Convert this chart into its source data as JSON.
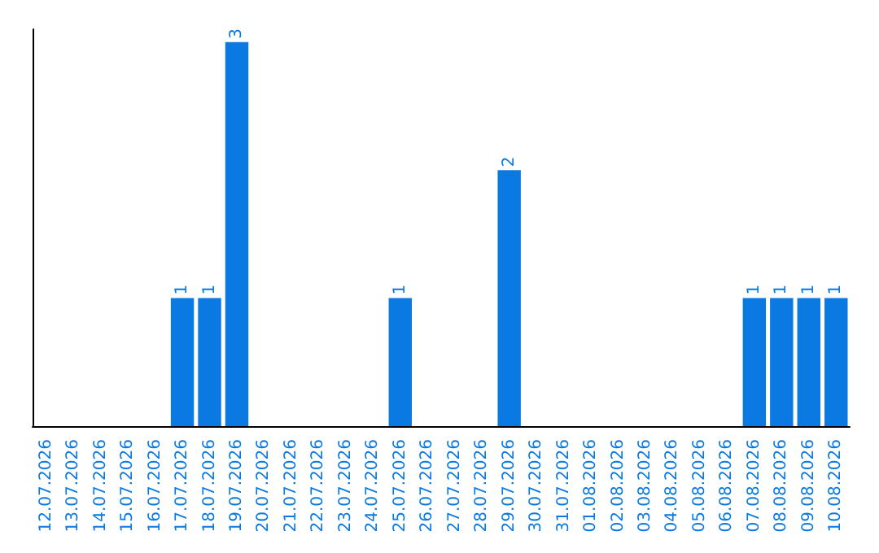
{
  "chart_data": {
    "type": "bar",
    "categories": [
      "12.07.2026",
      "13.07.2026",
      "14.07.2026",
      "15.07.2026",
      "16.07.2026",
      "17.07.2026",
      "18.07.2026",
      "19.07.2026",
      "20.07.2026",
      "21.07.2026",
      "22.07.2026",
      "23.07.2026",
      "24.07.2026",
      "25.07.2026",
      "26.07.2026",
      "27.07.2026",
      "28.07.2026",
      "29.07.2026",
      "30.07.2026",
      "31.07.2026",
      "01.08.2026",
      "02.08.2026",
      "03.08.2026",
      "04.08.2026",
      "05.08.2026",
      "06.08.2026",
      "07.08.2026",
      "08.08.2026",
      "09.08.2026",
      "10.08.2026"
    ],
    "values": [
      0,
      0,
      0,
      0,
      0,
      1,
      1,
      3,
      0,
      0,
      0,
      0,
      0,
      1,
      0,
      0,
      0,
      2,
      0,
      0,
      0,
      0,
      0,
      0,
      0,
      0,
      1,
      1,
      1,
      1
    ],
    "value_labels": [
      null,
      null,
      null,
      null,
      null,
      "1",
      "1",
      "3",
      null,
      null,
      null,
      null,
      null,
      "1",
      null,
      null,
      null,
      "2",
      null,
      null,
      null,
      null,
      null,
      null,
      null,
      null,
      "1",
      "1",
      "1",
      "1"
    ],
    "color": "#0a7ae2",
    "ylim": [
      0,
      3.1
    ],
    "tick_labels": "x",
    "grid": false
  }
}
